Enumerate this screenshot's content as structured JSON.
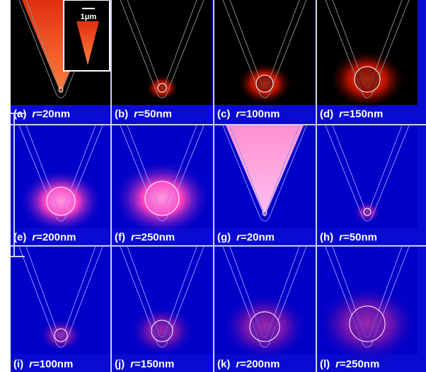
{
  "figure": {
    "variable": "r",
    "inset_scale": "1μm",
    "panels": [
      {
        "letter": "(a)",
        "radius": "=20nm"
      },
      {
        "letter": "(b)",
        "radius": "=50nm"
      },
      {
        "letter": "(c)",
        "radius": "=100nm"
      },
      {
        "letter": "(d)",
        "radius": "=150nm"
      },
      {
        "letter": "(e)",
        "radius": "=200nm"
      },
      {
        "letter": "(f)",
        "radius": "=250nm"
      },
      {
        "letter": "(g)",
        "radius": "=20nm"
      },
      {
        "letter": "(h)",
        "radius": "=50nm"
      },
      {
        "letter": "(i)",
        "radius": "=100nm"
      },
      {
        "letter": "(j)",
        "radius": "=150nm"
      },
      {
        "letter": "(k)",
        "radius": "=200nm"
      },
      {
        "letter": "(l)",
        "radius": "=250nm"
      }
    ]
  }
}
